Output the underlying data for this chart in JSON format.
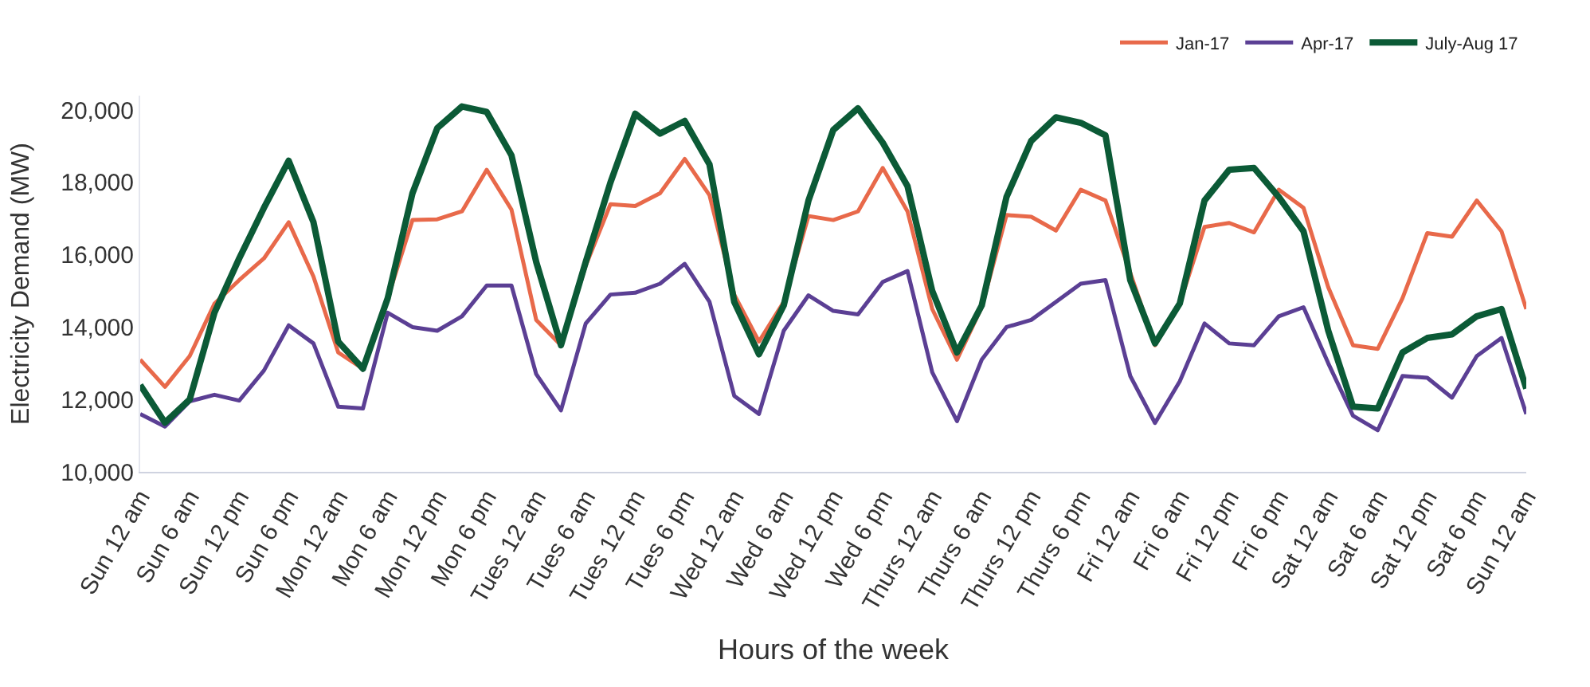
{
  "chart_data": {
    "type": "line",
    "xlabel": "Hours of the week",
    "ylabel": "Electricity Demand (MW)",
    "categories": [
      "Sun 12 am",
      null,
      "Sun 6 am",
      null,
      "Sun 12 pm",
      null,
      "Sun 6 pm",
      null,
      "Mon 12 am",
      null,
      "Mon 6 am",
      null,
      "Mon 12 pm",
      null,
      "Mon 6 pm",
      null,
      "Tues 12 am",
      null,
      "Tues 6 am",
      null,
      "Tues 12 pm",
      null,
      "Tues 6 pm",
      null,
      "Wed 12 am",
      null,
      "Wed 6 am",
      null,
      "Wed 12 pm",
      null,
      "Wed 6 pm",
      null,
      "Thurs 12 am",
      null,
      "Thurs 6 am",
      null,
      "Thurs 12 pm",
      null,
      "Thurs 6 pm",
      null,
      "Fri 12 am",
      null,
      "Fri 6 am",
      null,
      "Fri 12 pm",
      null,
      "Fri 6 pm",
      null,
      "Sat 12 am",
      null,
      "Sat 6 am",
      null,
      "Sat 12 pm",
      null,
      "Sat 6 pm",
      null,
      "Sun 12 am"
    ],
    "ylim": [
      10000,
      20400
    ],
    "yticks": [
      {
        "value": 10000,
        "label": "10,000"
      },
      {
        "value": 12000,
        "label": "12,000"
      },
      {
        "value": 14000,
        "label": "14,000"
      },
      {
        "value": 16000,
        "label": "16,000"
      },
      {
        "value": 18000,
        "label": "18,000"
      },
      {
        "value": 20000,
        "label": "20,000"
      }
    ],
    "legend": "top right",
    "marker": "none",
    "line_style": "solid",
    "series": [
      {
        "name": "Jan-17",
        "color": "#e8694a",
        "values": [
          13100,
          12350,
          13200,
          14650,
          15300,
          15900,
          16900,
          15400,
          13300,
          12850,
          14800,
          16960,
          16980,
          17200,
          18350,
          17250,
          14200,
          13500,
          15700,
          17400,
          17350,
          17700,
          18650,
          17650,
          14900,
          13600,
          14700,
          17070,
          16960,
          17200,
          18400,
          17200,
          14500,
          13100,
          14550,
          17100,
          17050,
          16670,
          17800,
          17500,
          15500,
          13500,
          14650,
          16770,
          16880,
          16620,
          17800,
          17300,
          15100,
          13500,
          13400,
          14800,
          16600,
          16500,
          17500,
          16650,
          14500
        ]
      },
      {
        "name": "Apr-17",
        "color": "#5b3f94",
        "values": [
          11600,
          11250,
          11950,
          12130,
          11970,
          12800,
          14050,
          13550,
          11800,
          11750,
          14400,
          14000,
          13900,
          14300,
          15150,
          15150,
          12700,
          11700,
          14100,
          14900,
          14950,
          15200,
          15750,
          14700,
          12100,
          11600,
          13900,
          14880,
          14450,
          14350,
          15250,
          15550,
          12750,
          11400,
          13100,
          14000,
          14200,
          14700,
          15200,
          15300,
          12650,
          11350,
          12500,
          14100,
          13550,
          13500,
          14300,
          14550,
          13000,
          11550,
          11150,
          12650,
          12600,
          12050,
          13200,
          13700,
          11600
        ]
      },
      {
        "name": "July-Aug 17",
        "color": "#0b5a36",
        "values": [
          12400,
          11360,
          12000,
          14400,
          15900,
          17300,
          18600,
          16900,
          13600,
          12850,
          14800,
          17700,
          19500,
          20100,
          19950,
          18750,
          15800,
          13500,
          15800,
          18000,
          19900,
          19350,
          19700,
          18500,
          14700,
          13250,
          14600,
          17500,
          19450,
          20050,
          19100,
          17900,
          15000,
          13300,
          14600,
          17600,
          19150,
          19800,
          19650,
          19300,
          15300,
          13550,
          14650,
          17500,
          18350,
          18400,
          17600,
          16650,
          13900,
          11800,
          11750,
          13300,
          13700,
          13800,
          14300,
          14500,
          12300
        ]
      }
    ]
  }
}
